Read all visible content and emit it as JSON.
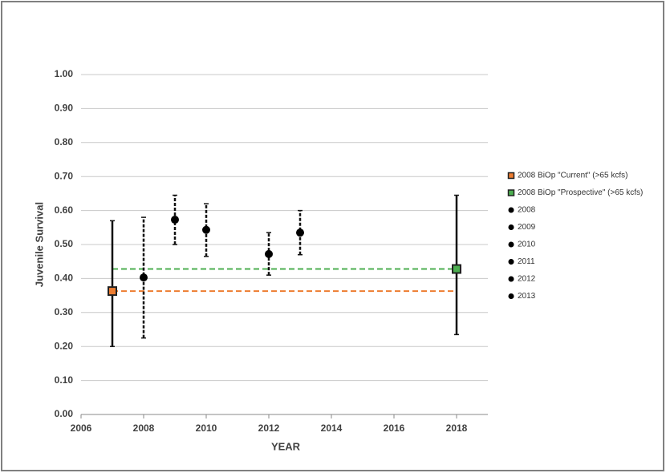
{
  "chart_data": {
    "type": "scatter",
    "x_label": "YEAR",
    "y_label": "Juvenile Survival",
    "xlim": [
      2006,
      2019
    ],
    "xticks": [
      2006,
      2008,
      2010,
      2012,
      2014,
      2016,
      2018
    ],
    "ylim": [
      0,
      1
    ],
    "yticks": [
      {
        "value": 0,
        "label": "0.00"
      },
      {
        "value": 0.1,
        "label": "0.10"
      },
      {
        "value": 0.2,
        "label": "0.20"
      },
      {
        "value": 0.3,
        "label": "0.30"
      },
      {
        "value": 0.4,
        "label": "0.40"
      },
      {
        "value": 0.5,
        "label": "0.50"
      },
      {
        "value": 0.6,
        "label": "0.60"
      },
      {
        "value": 0.7,
        "label": "0.70"
      },
      {
        "value": 0.8,
        "label": "0.80"
      },
      {
        "value": 0.9,
        "label": "0.90"
      },
      {
        "value": 1,
        "label": "1.00"
      }
    ],
    "grid": true,
    "legend": "right",
    "series": [
      {
        "name": "2008 BiOp \"Current\" (>65 kcfs)",
        "color": "#ed7d31",
        "marker": "square",
        "error_style": "solid",
        "reference_line": true,
        "x": [
          2007
        ],
        "values": [
          0.363
        ],
        "lower": [
          0.2
        ],
        "upper": [
          0.57
        ]
      },
      {
        "name": "2008 BiOp \"Prospective\" (>65 kcfs)",
        "color": "#4caf50",
        "marker": "square",
        "error_style": "solid",
        "reference_line": true,
        "x": [
          2018
        ],
        "values": [
          0.428
        ],
        "lower": [
          0.235
        ],
        "upper": [
          0.645
        ]
      },
      {
        "name": "2008",
        "color": "#000000",
        "marker": "circle",
        "error_style": "dashed",
        "reference_line": false,
        "x": [
          2008
        ],
        "values": [
          0.403
        ],
        "lower": [
          0.225
        ],
        "upper": [
          0.58
        ]
      },
      {
        "name": "2009",
        "color": "#000000",
        "marker": "circle",
        "error_style": "dashed",
        "reference_line": false,
        "x": [
          2009
        ],
        "values": [
          0.573
        ],
        "lower": [
          0.5
        ],
        "upper": [
          0.645
        ]
      },
      {
        "name": "2010",
        "color": "#000000",
        "marker": "circle",
        "error_style": "dashed",
        "reference_line": false,
        "x": [
          2010
        ],
        "values": [
          0.543
        ],
        "lower": [
          0.465
        ],
        "upper": [
          0.62
        ]
      },
      {
        "name": "2011",
        "color": "#000000",
        "marker": "circle",
        "error_style": "dashed",
        "reference_line": false,
        "x": [],
        "values": [],
        "lower": [],
        "upper": []
      },
      {
        "name": "2012",
        "color": "#000000",
        "marker": "circle",
        "error_style": "dashed",
        "reference_line": false,
        "x": [
          2012
        ],
        "values": [
          0.472
        ],
        "lower": [
          0.41
        ],
        "upper": [
          0.535
        ]
      },
      {
        "name": "2013",
        "color": "#000000",
        "marker": "circle",
        "error_style": "dashed",
        "reference_line": false,
        "x": [
          2013
        ],
        "values": [
          0.535
        ],
        "lower": [
          0.47
        ],
        "upper": [
          0.6
        ]
      }
    ]
  }
}
